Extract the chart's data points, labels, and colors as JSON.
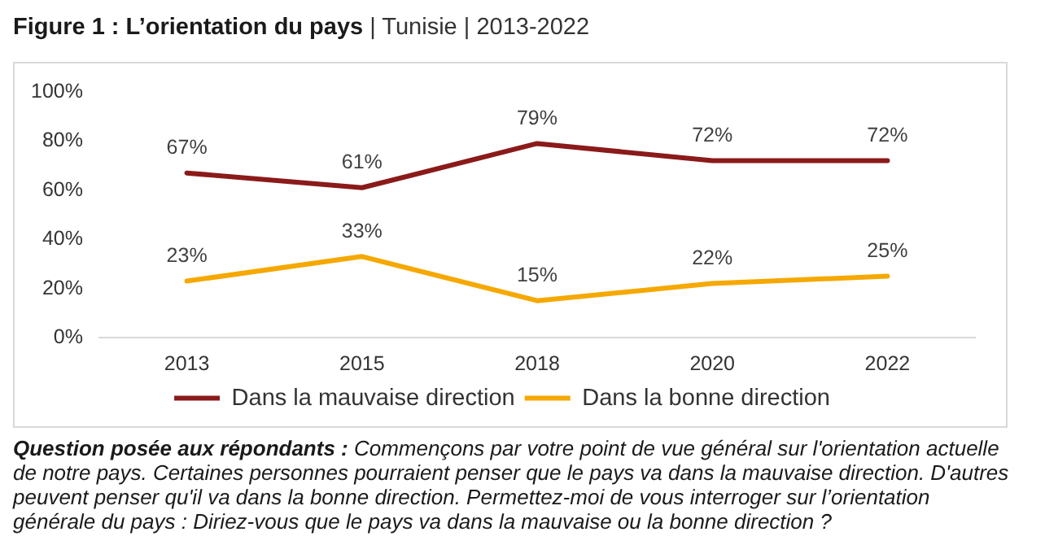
{
  "chart_data": {
    "type": "line",
    "title": "Figure 1 : L’orientation du pays",
    "subtitle": "| Tunisie | 2013-2022",
    "categories": [
      "2013",
      "2015",
      "2018",
      "2020",
      "2022"
    ],
    "series": [
      {
        "name": "Dans la mauvaise direction",
        "color": "#8b1a1a",
        "values": [
          67,
          61,
          79,
          72,
          72
        ],
        "value_labels": [
          "67%",
          "61%",
          "79%",
          "72%",
          "72%"
        ]
      },
      {
        "name": "Dans la bonne direction",
        "color": "#f5a800",
        "values": [
          23,
          33,
          15,
          22,
          25
        ],
        "value_labels": [
          "23%",
          "33%",
          "15%",
          "22%",
          "25%"
        ]
      }
    ],
    "ylim": [
      0,
      100
    ],
    "yticks": [
      {
        "value": 0,
        "label": "0%"
      },
      {
        "value": 20,
        "label": "20%"
      },
      {
        "value": 40,
        "label": "40%"
      },
      {
        "value": 60,
        "label": "60%"
      },
      {
        "value": 80,
        "label": "80%"
      },
      {
        "value": 100,
        "label": "100%"
      }
    ],
    "grid": false,
    "legend": "bottom",
    "marker": "none",
    "annotations": [
      "Question posée aux répondants : Commençons par votre point de vue général sur l'orientation actuelle de notre pays. Certaines personnes pourraient penser que le pays va dans la mauvaise direction. D'autres peuvent penser qu'il va dans la bonne direction. Permettez-moi de vous interroger sur l’orientation générale du pays : Diriez-vous que le pays va dans la mauvaise ou la bonne direction ?"
    ]
  }
}
